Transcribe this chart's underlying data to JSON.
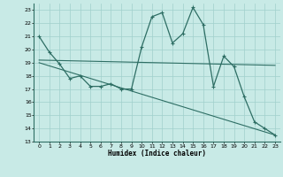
{
  "xlabel": "Humidex (Indice chaleur)",
  "bg_color": "#c8eae6",
  "line_color": "#2e6e64",
  "grid_color": "#a0d0cc",
  "xlim": [
    -0.5,
    23.5
  ],
  "ylim": [
    13,
    23.5
  ],
  "yticks": [
    13,
    14,
    15,
    16,
    17,
    18,
    19,
    20,
    21,
    22,
    23
  ],
  "xticks": [
    0,
    1,
    2,
    3,
    4,
    5,
    6,
    7,
    8,
    9,
    10,
    11,
    12,
    13,
    14,
    15,
    16,
    17,
    18,
    19,
    20,
    21,
    22,
    23
  ],
  "line1_x": [
    0,
    1,
    2,
    3,
    4,
    5,
    6,
    7,
    8,
    9,
    10,
    11,
    12,
    13,
    14,
    15,
    16,
    17,
    18,
    19,
    20,
    21,
    22,
    23
  ],
  "line1_y": [
    21.0,
    19.8,
    18.9,
    17.8,
    18.0,
    17.2,
    17.2,
    17.4,
    17.0,
    17.0,
    20.2,
    22.5,
    22.8,
    20.5,
    21.2,
    23.2,
    21.9,
    17.2,
    19.5,
    18.7,
    16.4,
    14.5,
    14.0,
    13.5
  ],
  "line2_x": [
    0,
    23
  ],
  "line2_y": [
    19.2,
    18.8
  ],
  "line3_x": [
    0,
    23
  ],
  "line3_y": [
    19.0,
    13.5
  ]
}
